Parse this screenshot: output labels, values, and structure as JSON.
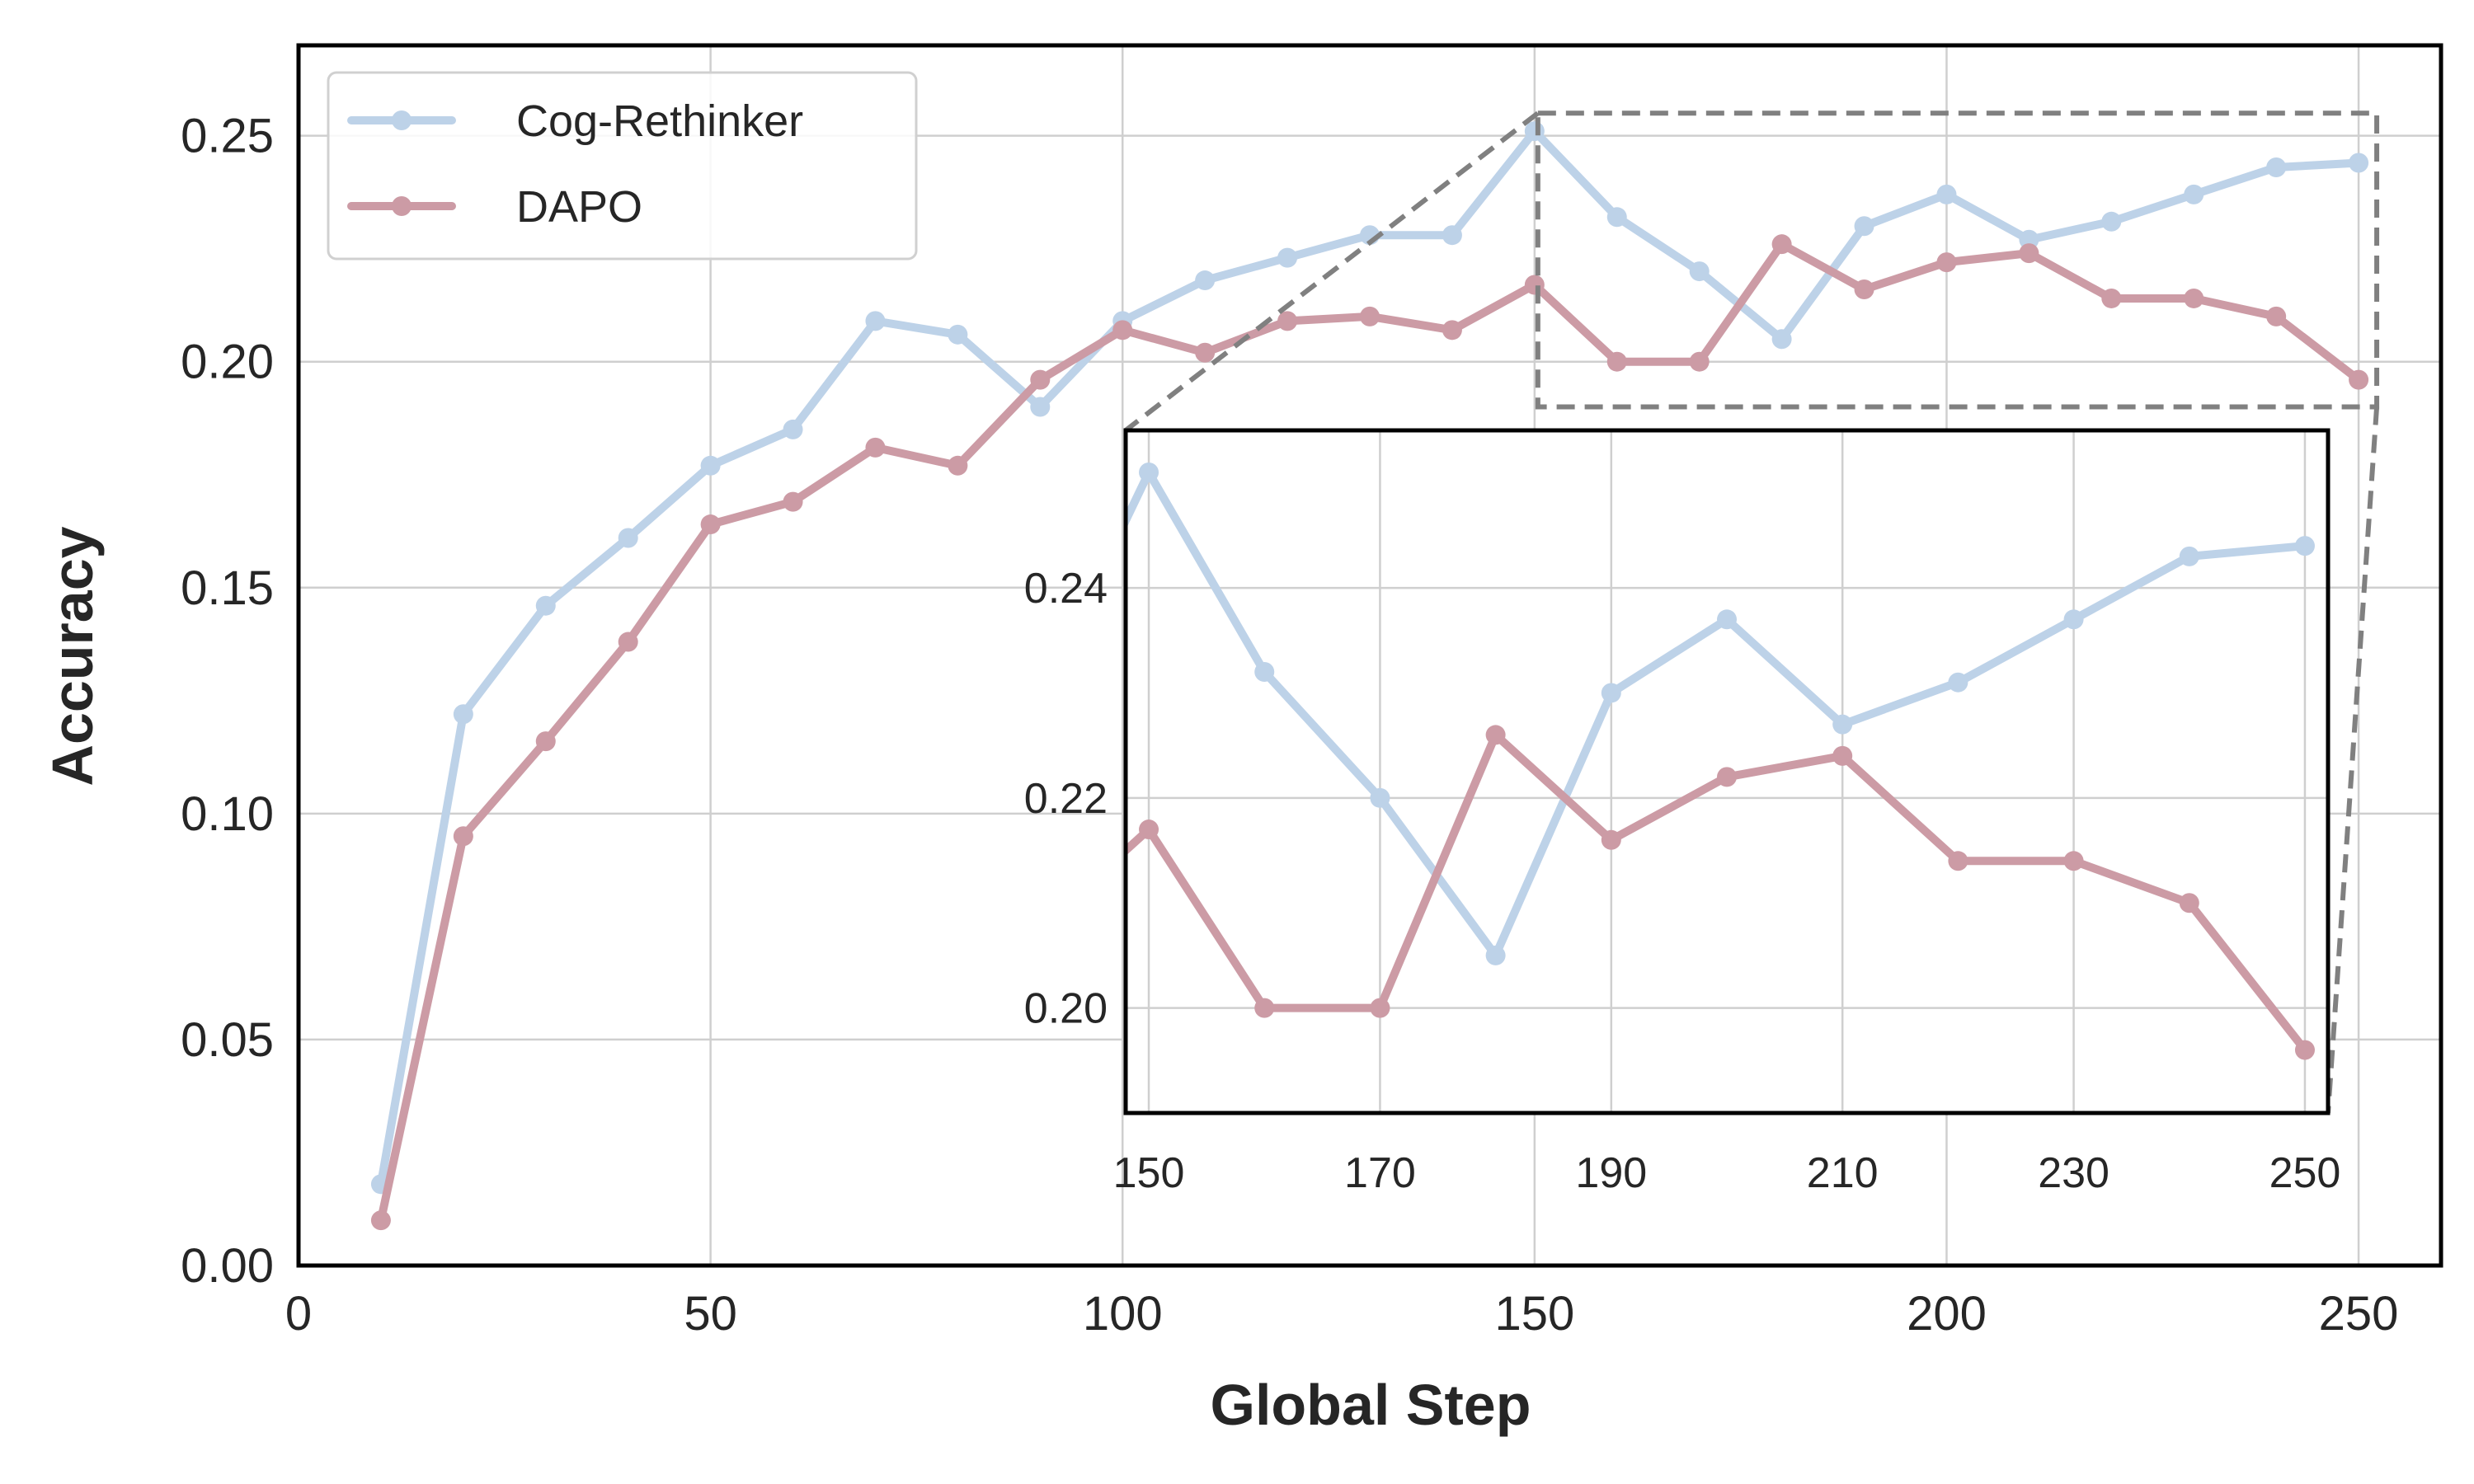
{
  "chart_data": {
    "type": "line",
    "xlabel": "Global Step",
    "ylabel": "Accuracy",
    "xlim": [
      0,
      260
    ],
    "ylim": [
      0.0,
      0.27
    ],
    "xticks": [
      0,
      50,
      100,
      150,
      200,
      250
    ],
    "xtick_labels": [
      "0",
      "50",
      "100",
      "150",
      "200",
      "250"
    ],
    "yticks": [
      0.0,
      0.05,
      0.1,
      0.15,
      0.2,
      0.25
    ],
    "ytick_labels": [
      "0.00",
      "0.05",
      "0.10",
      "0.15",
      "0.20",
      "0.25"
    ],
    "grid": true,
    "legend_position": "top-left",
    "x": [
      10,
      20,
      30,
      40,
      50,
      60,
      70,
      80,
      90,
      100,
      110,
      120,
      130,
      140,
      150,
      160,
      170,
      180,
      190,
      200,
      210,
      220,
      230,
      240,
      250
    ],
    "series": [
      {
        "name": "Cog-Rethinker",
        "color": "#bdd2e8",
        "values": [
          0.018,
          0.122,
          0.146,
          0.161,
          0.177,
          0.185,
          0.209,
          0.206,
          0.19,
          0.209,
          0.218,
          0.223,
          0.228,
          0.228,
          0.251,
          0.232,
          0.22,
          0.205,
          0.23,
          0.237,
          0.227,
          0.231,
          0.237,
          0.243,
          0.244
        ]
      },
      {
        "name": "DAPO",
        "color": "#cc9ba5",
        "values": [
          0.01,
          0.095,
          0.116,
          0.138,
          0.164,
          0.169,
          0.181,
          0.177,
          0.196,
          0.207,
          0.202,
          0.209,
          0.21,
          0.207,
          0.217,
          0.2,
          0.2,
          0.226,
          0.216,
          0.222,
          0.224,
          0.214,
          0.214,
          0.21,
          0.196
        ]
      }
    ],
    "zoom_region": {
      "xlim": [
        150,
        250
      ],
      "ylim": [
        0.19,
        0.255
      ]
    },
    "inset": {
      "xlim": [
        148,
        252
      ],
      "ylim": [
        0.19,
        0.255
      ],
      "xticks": [
        150,
        170,
        190,
        210,
        230,
        250
      ],
      "xtick_labels": [
        "150",
        "170",
        "190",
        "210",
        "230",
        "250"
      ],
      "yticks": [
        0.2,
        0.22,
        0.24
      ],
      "ytick_labels": [
        "0.20",
        "0.22",
        "0.24"
      ]
    }
  }
}
